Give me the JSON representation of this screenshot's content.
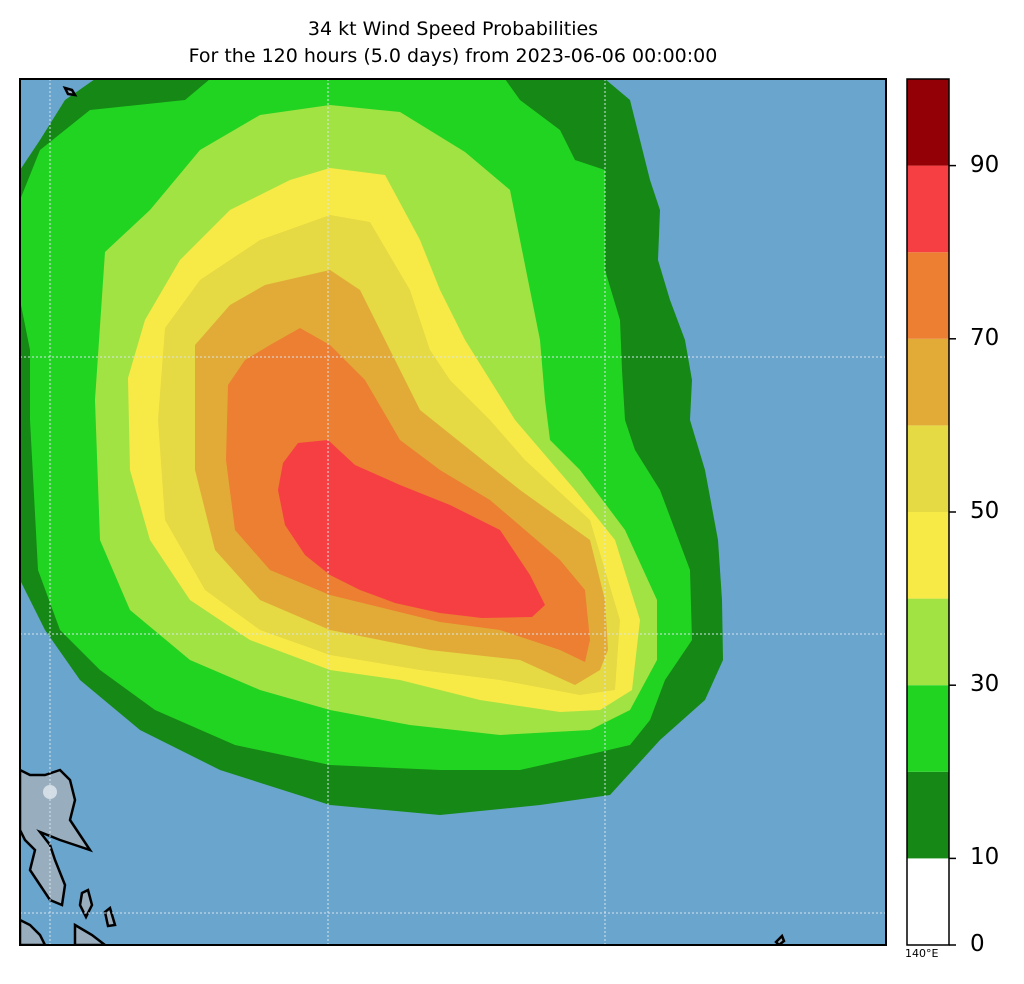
{
  "title": {
    "line1": "34 kt Wind Speed Probabilities",
    "line2": "For the 120 hours (5.0 days) from 2023-06-06 00:00:00"
  },
  "map": {
    "ocean_color": "#6aa5cd",
    "land_color": "#98aebf",
    "gridline_color": "#d8e4ee",
    "longitude_label": "140°E"
  },
  "colorbar": {
    "levels": [
      0,
      10,
      20,
      30,
      40,
      50,
      60,
      70,
      80,
      90,
      100
    ],
    "bin_colors": [
      "#ffffff",
      "#158815",
      "#21d421",
      "#a2e344",
      "#f8ea46",
      "#e5d944",
      "#e2ab37",
      "#ec7f31",
      "#f63f43",
      "#930005",
      "#8226d6"
    ],
    "tick_labels": [
      "0",
      "10",
      "30",
      "50",
      "70",
      "90"
    ]
  },
  "chart_data": {
    "type": "filled-contour",
    "title": "34 kt Wind Speed Probabilities",
    "subtitle": "For the 120 hours (5.0 days) from 2023-06-06 00:00:00",
    "variable": "34 kt wind speed probability (%)",
    "contour_levels": [
      5,
      10,
      20,
      30,
      40,
      50,
      60,
      70
    ],
    "max_probability_range": [
      70,
      80
    ],
    "colorbar_range": [
      0,
      100
    ],
    "x_tick_labels": [
      "140°E"
    ]
  }
}
